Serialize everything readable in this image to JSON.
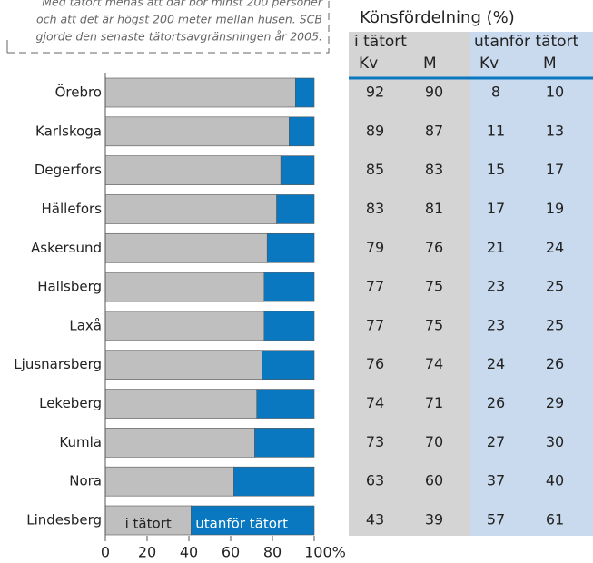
{
  "note": [
    "Med tätort menas att där bor minst 200 personer",
    "och att det är högst 200 meter mellan husen. SCB",
    "gjorde den senaste tätortsavgränsningen år 2005."
  ],
  "chart_data": {
    "type": "stacked-barh",
    "categories": [
      "Örebro",
      "Karlskoga",
      "Degerfors",
      "Hällefors",
      "Askersund",
      "Hallsberg",
      "Laxå",
      "Ljusnarsberg",
      "Lekeberg",
      "Kumla",
      "Nora",
      "Lindesberg"
    ],
    "series": [
      {
        "name": "i tätort",
        "color": "#bfbfbf",
        "values": [
          91,
          88,
          84,
          82,
          77.5,
          76,
          76,
          75,
          72.5,
          71.5,
          61.5,
          41
        ]
      },
      {
        "name": "utanför tätort",
        "color": "#0a78c0",
        "values": [
          9,
          12,
          16,
          18,
          22.5,
          24,
          24,
          25,
          27.5,
          28.5,
          38.5,
          59
        ]
      }
    ],
    "xlim": [
      0,
      100
    ],
    "xticks": [
      0,
      20,
      40,
      60,
      80,
      {
        "value": 100,
        "label": "100%"
      }
    ]
  },
  "table": {
    "title": "Könsfördelning (%)",
    "groups": [
      "i tätort",
      "utanför tätort"
    ],
    "columns": [
      "Kv",
      "M",
      "Kv",
      "M"
    ],
    "rows": [
      [
        92,
        90,
        8,
        10
      ],
      [
        89,
        87,
        11,
        13
      ],
      [
        85,
        83,
        15,
        17
      ],
      [
        83,
        81,
        17,
        19
      ],
      [
        79,
        76,
        21,
        24
      ],
      [
        77,
        75,
        23,
        25
      ],
      [
        77,
        75,
        23,
        25
      ],
      [
        76,
        74,
        24,
        26
      ],
      [
        74,
        71,
        26,
        29
      ],
      [
        73,
        70,
        27,
        30
      ],
      [
        63,
        60,
        37,
        40
      ],
      [
        43,
        39,
        57,
        61
      ]
    ]
  }
}
